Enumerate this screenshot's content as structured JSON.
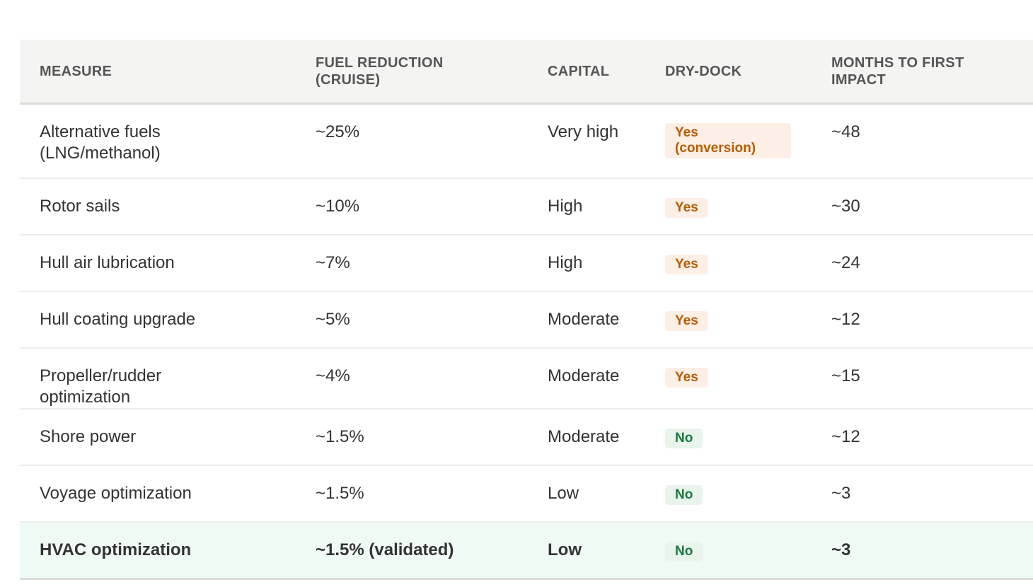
{
  "headers": [
    "Measure",
    "Fuel reduction (cruise)",
    "Capital",
    "Dry-dock",
    "Months to first impact"
  ],
  "colors": {
    "yes_text": "#b35c00",
    "yes_bg": "#fdeee6",
    "no_text": "#1a7a3e",
    "no_bg": "#e8f4ec",
    "highlight_bg": "#f0faf5"
  },
  "rows": [
    {
      "measure": "Alternative fuels (LNG/methanol)",
      "fuel": "~25%",
      "capital": "Very high",
      "drydock": "Yes (conversion)",
      "drydock_type": "yes",
      "months": "~48"
    },
    {
      "measure": "Rotor sails",
      "fuel": "~10%",
      "capital": "High",
      "drydock": "Yes",
      "drydock_type": "yes",
      "months": "~30"
    },
    {
      "measure": "Hull air lubrication",
      "fuel": "~7%",
      "capital": "High",
      "drydock": "Yes",
      "drydock_type": "yes",
      "months": "~24"
    },
    {
      "measure": "Hull coating upgrade",
      "fuel": "~5%",
      "capital": "Moderate",
      "drydock": "Yes",
      "drydock_type": "yes",
      "months": "~12"
    },
    {
      "measure": "Propeller/rudder optimization",
      "fuel": "~4%",
      "capital": "Moderate",
      "drydock": "Yes",
      "drydock_type": "yes",
      "months": "~15"
    },
    {
      "measure": "Shore power",
      "fuel": "~1.5%",
      "capital": "Moderate",
      "drydock": "No",
      "drydock_type": "no",
      "months": "~12"
    },
    {
      "measure": "Voyage optimization",
      "fuel": "~1.5%",
      "capital": "Low",
      "drydock": "No",
      "drydock_type": "no",
      "months": "~3"
    },
    {
      "measure": "HVAC optimization",
      "fuel": "~1.5% (validated)",
      "capital": "Low",
      "drydock": "No",
      "drydock_type": "no",
      "months": "~3",
      "highlighted": true
    }
  ]
}
